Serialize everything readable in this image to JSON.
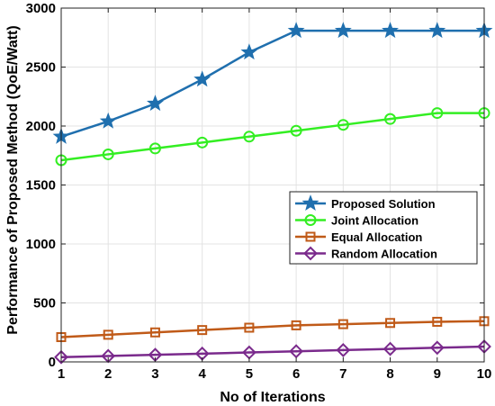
{
  "chart_data": {
    "type": "line",
    "xlabel": "No of Iterations",
    "ylabel": "Performance of Proposed Method (QoE/Watt)",
    "x": [
      1,
      2,
      3,
      4,
      5,
      6,
      7,
      8,
      9,
      10
    ],
    "xlim": [
      1,
      10
    ],
    "ylim": [
      0,
      3000
    ],
    "xticks": [
      "1",
      "2",
      "3",
      "4",
      "5",
      "6",
      "7",
      "8",
      "9",
      "10"
    ],
    "yticks": [
      "0",
      "500",
      "1000",
      "1500",
      "2000",
      "2500",
      "3000"
    ],
    "grid": true,
    "legend_position": "lower-right",
    "series": [
      {
        "name": "Proposed Solution",
        "color": "#1f6fae",
        "marker": "star",
        "values": [
          1910,
          2040,
          2190,
          2395,
          2625,
          2808,
          2808,
          2808,
          2808,
          2808
        ]
      },
      {
        "name": "Joint Allocation",
        "color": "#33ee22",
        "marker": "circle",
        "values": [
          1710,
          1760,
          1810,
          1860,
          1910,
          1960,
          2010,
          2060,
          2110,
          2110
        ]
      },
      {
        "name": "Equal Allocation",
        "color": "#c05a18",
        "marker": "square",
        "values": [
          210,
          230,
          250,
          270,
          290,
          310,
          320,
          330,
          340,
          345
        ]
      },
      {
        "name": "Random Allocation",
        "color": "#7a2a8c",
        "marker": "diamond",
        "values": [
          40,
          50,
          60,
          70,
          80,
          90,
          100,
          110,
          120,
          130
        ]
      }
    ]
  }
}
